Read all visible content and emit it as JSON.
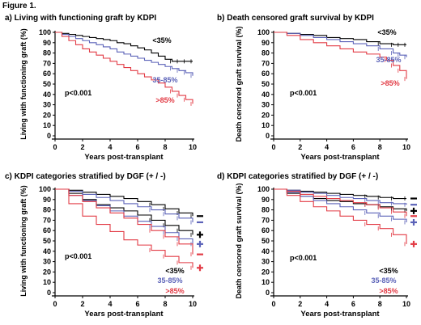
{
  "figure_label": "Figure 1.",
  "colors": {
    "low": "#000000",
    "mid": "#5b62b8",
    "high": "#e23b45"
  },
  "chart_data": [
    {
      "panel": "a",
      "type": "line",
      "title": "a) Living with functioning graft by KDPI",
      "xlabel": "Years post-transplant",
      "ylabel": "Living with functioning graft (%)",
      "xlim": [
        0,
        10
      ],
      "ylim": [
        0,
        100
      ],
      "xticks": [
        0,
        2,
        4,
        6,
        8,
        10
      ],
      "yticks": [
        0,
        10,
        20,
        30,
        40,
        50,
        60,
        70,
        80,
        90,
        100
      ],
      "annotation": "p<0.001",
      "series": [
        {
          "name": "<35%",
          "color": "low",
          "x": [
            0,
            0.5,
            1,
            1.5,
            2,
            2.5,
            3,
            3.5,
            4,
            4.5,
            5,
            5.5,
            6,
            6.5,
            7,
            7.5,
            8,
            8.5,
            9,
            9.5,
            10
          ],
          "y": [
            100,
            99,
            98,
            97,
            96,
            95,
            94,
            93,
            92,
            90,
            89,
            87,
            85,
            83,
            80,
            77,
            74,
            72,
            72,
            72,
            72
          ]
        },
        {
          "name": "35-85%",
          "color": "mid",
          "x": [
            0,
            0.5,
            1,
            1.5,
            2,
            2.5,
            3,
            3.5,
            4,
            4.5,
            5,
            5.5,
            6,
            6.5,
            7,
            7.5,
            8,
            8.5,
            9,
            9.5,
            10
          ],
          "y": [
            100,
            98,
            96,
            94,
            92,
            90,
            88,
            86,
            84,
            81,
            79,
            77,
            75,
            73,
            71,
            69,
            67,
            65,
            63,
            61,
            58
          ]
        },
        {
          "name": ">85%",
          "color": "high",
          "x": [
            0,
            0.5,
            1,
            1.5,
            2,
            2.5,
            3,
            3.5,
            4,
            4.5,
            5,
            5.5,
            6,
            6.5,
            7,
            7.5,
            8,
            8.5,
            9,
            9.5,
            10
          ],
          "y": [
            100,
            96,
            92,
            88,
            84,
            81,
            78,
            75,
            72,
            69,
            66,
            63,
            60,
            57,
            54,
            51,
            47,
            43,
            39,
            35,
            31
          ]
        }
      ]
    },
    {
      "panel": "b",
      "type": "line",
      "title": "b) Death censored graft survival by KDPI",
      "xlabel": "Years post-transplant",
      "ylabel": "Death censored graft survival (%)",
      "xlim": [
        0,
        10
      ],
      "ylim": [
        0,
        100
      ],
      "xticks": [
        0,
        2,
        4,
        6,
        8,
        10
      ],
      "yticks": [
        0,
        10,
        20,
        30,
        40,
        50,
        60,
        70,
        80,
        90,
        100
      ],
      "annotation": "p<0.001",
      "series": [
        {
          "name": "<35%",
          "color": "low",
          "x": [
            0,
            1,
            2,
            3,
            4,
            5,
            6,
            7,
            8,
            9,
            9.5,
            10
          ],
          "y": [
            100,
            99,
            98,
            97,
            95,
            94,
            93,
            91,
            89,
            88,
            88,
            88
          ]
        },
        {
          "name": "35-85%",
          "color": "mid",
          "x": [
            0,
            1,
            2,
            3,
            4,
            5,
            6,
            7,
            8,
            9,
            9.5,
            10
          ],
          "y": [
            100,
            99,
            97,
            95,
            93,
            91,
            89,
            87,
            84,
            80,
            78,
            76
          ]
        },
        {
          "name": ">85%",
          "color": "high",
          "x": [
            0,
            1,
            2,
            3,
            4,
            5,
            6,
            7,
            8,
            8.5,
            9,
            9.5,
            10
          ],
          "y": [
            100,
            97,
            93,
            90,
            87,
            84,
            81,
            79,
            76,
            73,
            68,
            63,
            55
          ]
        }
      ]
    },
    {
      "panel": "c",
      "type": "line",
      "title": "c) KDPI categories stratified by DGF (+ / -)",
      "xlabel": "Years post-transplant",
      "ylabel": "Living with functioning graft (%)",
      "xlim": [
        0,
        10
      ],
      "ylim": [
        0,
        100
      ],
      "xticks": [
        0,
        2,
        4,
        6,
        8,
        10
      ],
      "yticks": [
        0,
        10,
        20,
        30,
        40,
        50,
        60,
        70,
        80,
        90,
        100
      ],
      "annotation": "p<0.001",
      "category_labels": [
        "<35%",
        "35-85%",
        ">85%"
      ],
      "series": [
        {
          "name": "<35% DGF-",
          "color": "low",
          "marker": "-",
          "x": [
            0,
            1,
            2,
            3,
            4,
            5,
            6,
            7,
            8,
            9,
            10
          ],
          "y": [
            100,
            99,
            97,
            95,
            93,
            91,
            88,
            85,
            81,
            77,
            74
          ]
        },
        {
          "name": "<35% DGF+",
          "color": "low",
          "marker": "+",
          "x": [
            0,
            1,
            2,
            3,
            4,
            5,
            6,
            7,
            8,
            9,
            10
          ],
          "y": [
            100,
            96,
            90,
            85,
            82,
            79,
            75,
            70,
            65,
            60,
            56
          ]
        },
        {
          "name": "35-85% DGF-",
          "color": "mid",
          "marker": "-",
          "x": [
            0,
            1,
            2,
            3,
            4,
            5,
            6,
            7,
            8,
            9,
            10
          ],
          "y": [
            100,
            98,
            95,
            92,
            89,
            86,
            83,
            80,
            76,
            72,
            68
          ]
        },
        {
          "name": "35-85% DGF+",
          "color": "mid",
          "marker": "+",
          "x": [
            0,
            1,
            2,
            3,
            4,
            5,
            6,
            7,
            8,
            9,
            10
          ],
          "y": [
            100,
            94,
            89,
            84,
            79,
            74,
            69,
            64,
            58,
            52,
            47
          ]
        },
        {
          "name": ">85% DGF-",
          "color": "high",
          "marker": "-",
          "x": [
            0,
            1,
            2,
            3,
            4,
            5,
            6,
            7,
            8,
            9,
            10
          ],
          "y": [
            100,
            94,
            88,
            82,
            77,
            72,
            66,
            60,
            54,
            47,
            37
          ]
        },
        {
          "name": ">85% DGF+",
          "color": "high",
          "marker": "+",
          "x": [
            0,
            1,
            2,
            3,
            4,
            5,
            6,
            7,
            8,
            9,
            10
          ],
          "y": [
            100,
            86,
            74,
            66,
            59,
            51,
            46,
            41,
            35,
            29,
            24
          ]
        }
      ]
    },
    {
      "panel": "d",
      "type": "line",
      "title": "d) KDPI categories stratified by DGF (+ / -)",
      "xlabel": "Years post-transplant",
      "ylabel": "Death censored graft survival (%)",
      "xlim": [
        0,
        10
      ],
      "ylim": [
        0,
        100
      ],
      "xticks": [
        0,
        2,
        4,
        6,
        8,
        10
      ],
      "yticks": [
        0,
        10,
        20,
        30,
        40,
        50,
        60,
        70,
        80,
        90,
        100
      ],
      "annotation": "p<0.001",
      "category_labels": [
        "<35%",
        "35-85%",
        ">85%"
      ],
      "series": [
        {
          "name": "<35% DGF-",
          "color": "low",
          "marker": "-",
          "x": [
            0,
            1,
            2,
            3,
            4,
            5,
            6,
            7,
            8,
            9,
            10
          ],
          "y": [
            100,
            99,
            98,
            97,
            96,
            95,
            94,
            93,
            92,
            91,
            91
          ]
        },
        {
          "name": "<35% DGF+",
          "color": "low",
          "marker": "+",
          "x": [
            0,
            1,
            2,
            3,
            4,
            5,
            6,
            7,
            8,
            9,
            10
          ],
          "y": [
            100,
            96,
            93,
            91,
            89,
            88,
            86,
            85,
            83,
            81,
            79
          ]
        },
        {
          "name": "35-85% DGF-",
          "color": "mid",
          "marker": "-",
          "x": [
            0,
            1,
            2,
            3,
            4,
            5,
            6,
            7,
            8,
            9,
            10
          ],
          "y": [
            100,
            99,
            97,
            96,
            94,
            92,
            91,
            89,
            87,
            86,
            85
          ]
        },
        {
          "name": "35-85% DGF+",
          "color": "mid",
          "marker": "+",
          "x": [
            0,
            1,
            2,
            3,
            4,
            5,
            6,
            7,
            8,
            9,
            10
          ],
          "y": [
            100,
            97,
            93,
            89,
            86,
            83,
            80,
            77,
            74,
            71,
            68
          ]
        },
        {
          "name": ">85% DGF-",
          "color": "high",
          "marker": "-",
          "x": [
            0,
            1,
            2,
            3,
            4,
            5,
            6,
            7,
            8,
            9,
            10
          ],
          "y": [
            100,
            98,
            95,
            93,
            91,
            89,
            87,
            85,
            82,
            78,
            74
          ]
        },
        {
          "name": ">85% DGF+",
          "color": "high",
          "marker": "+",
          "x": [
            0,
            1,
            2,
            3,
            4,
            5,
            6,
            7,
            8,
            9,
            10
          ],
          "y": [
            100,
            94,
            88,
            83,
            79,
            74,
            70,
            66,
            62,
            56,
            47
          ]
        }
      ]
    }
  ]
}
